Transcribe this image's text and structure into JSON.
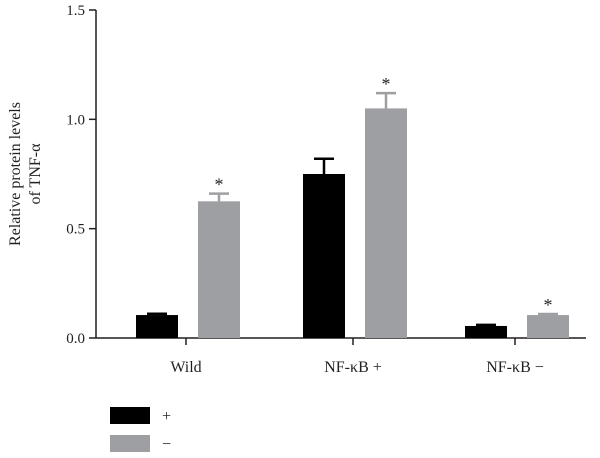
{
  "chart_data": {
    "type": "bar",
    "title": "",
    "xlabel": "",
    "ylabel": [
      "Relative protein levels",
      "of TNF-α"
    ],
    "ylim": [
      0,
      1.5
    ],
    "yticks": [
      "0.0",
      "0.5",
      "1.0",
      "1.5"
    ],
    "categories": [
      "Wild",
      "NF-κB +",
      "NF-κB −"
    ],
    "series": [
      {
        "name": "+",
        "color": "#000000",
        "values": [
          0.105,
          0.75,
          0.055
        ],
        "errors": [
          0.006,
          0.07,
          0.005
        ],
        "significance": [
          "",
          "",
          ""
        ]
      },
      {
        "name": "−",
        "color": "#9e9fa2",
        "values": [
          0.625,
          1.05,
          0.105
        ],
        "errors": [
          0.035,
          0.07,
          0.005
        ],
        "significance": [
          "*",
          "*",
          "*"
        ]
      }
    ],
    "grid": false,
    "legend_position": "bottom-left"
  }
}
